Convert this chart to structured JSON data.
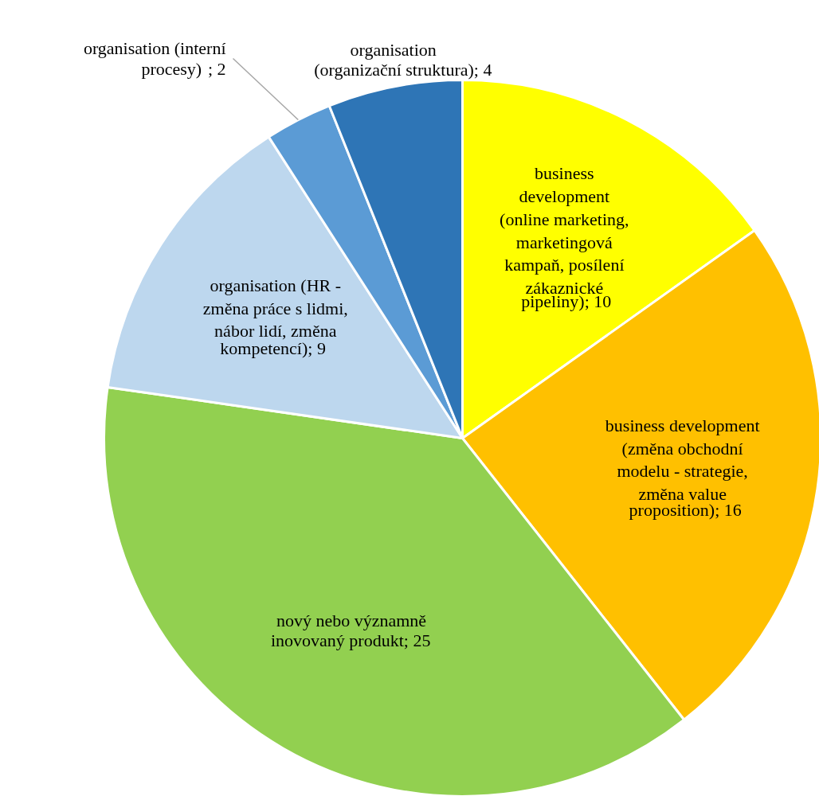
{
  "chart_data": {
    "type": "pie",
    "categories": [
      "business development (online marketing, marketingová kampaň, posílení zákaznické pipeliny)",
      "business development (změna obchodní modelu - strategie, změna value proposition)",
      "nový nebo významně inovovaný produkt",
      "organisation (HR - změna práce s lidmi, nábor lidí, změna kompetencí)",
      "organisation (interní procesy)",
      "organisation (organizační struktura)"
    ],
    "values": [
      10,
      16,
      25,
      9,
      2,
      4
    ],
    "value_labels": [
      "; 10",
      "; 16",
      "; 25",
      "; 9",
      "; 2",
      "; 4"
    ],
    "colors": [
      "#ffff00",
      "#ffc000",
      "#92d050",
      "#bdd7ee",
      "#5b9bd5",
      "#2e75b6"
    ]
  }
}
